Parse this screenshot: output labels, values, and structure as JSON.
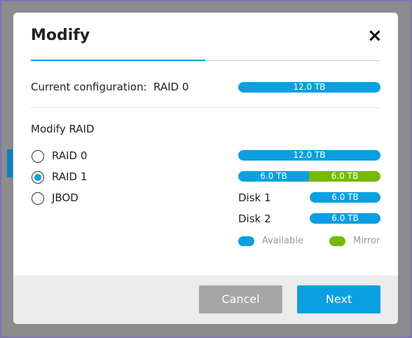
{
  "dialog": {
    "title": "Modify",
    "close": "×",
    "current": {
      "label": "Current configuration:",
      "value": "RAID 0",
      "bar": "12.0 TB"
    },
    "section": "Modify RAID",
    "options": [
      {
        "label": "RAID 0",
        "selected": false
      },
      {
        "label": "RAID 1",
        "selected": true
      },
      {
        "label": "JBOD",
        "selected": false
      }
    ],
    "preview": {
      "total": "12.0 TB",
      "split": [
        "6.0 TB",
        "6.0 TB"
      ],
      "disks": [
        {
          "label": "Disk 1",
          "bar": "6.0 TB"
        },
        {
          "label": "Disk 2",
          "bar": "6.0 TB"
        }
      ]
    },
    "legend": [
      {
        "name": "Available",
        "color": "#0a9fe0"
      },
      {
        "name": "Mirror",
        "color": "#76b900"
      }
    ],
    "buttons": {
      "cancel": "Cancel",
      "next": "Next"
    }
  }
}
